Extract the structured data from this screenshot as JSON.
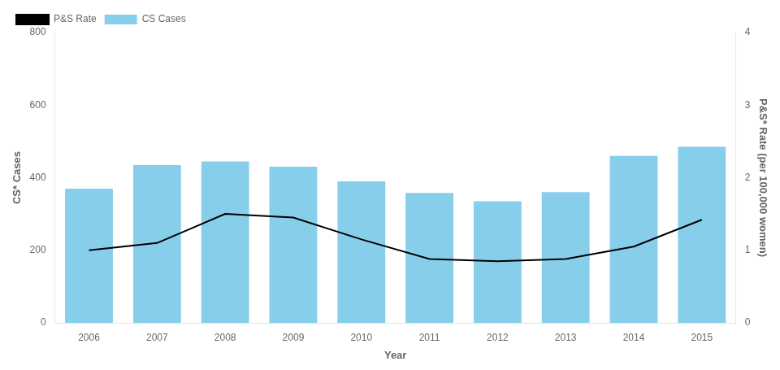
{
  "chart_data": {
    "type": "bar",
    "xlabel": "Year",
    "ylabel": "CS* Cases",
    "y2label": "P&S* Rate (per 100,000 women)",
    "categories": [
      "2006",
      "2007",
      "2008",
      "2009",
      "2010",
      "2011",
      "2012",
      "2013",
      "2014",
      "2015"
    ],
    "series": [
      {
        "name": "CS Cases",
        "type": "bar",
        "color": "#87CEEB",
        "values": [
          370,
          435,
          445,
          430,
          390,
          358,
          335,
          360,
          460,
          485
        ]
      },
      {
        "name": "P&S Rate",
        "type": "line",
        "color": "#000000",
        "axis": "y2",
        "values": [
          1.0,
          1.1,
          1.5,
          1.45,
          1.15,
          0.88,
          0.85,
          0.88,
          1.05,
          1.42
        ]
      }
    ],
    "ylim": [
      0,
      800
    ],
    "yticks": [
      0,
      200,
      400,
      600,
      800
    ],
    "y2lim": [
      0,
      4
    ],
    "y2ticks": [
      0,
      1,
      2,
      3,
      4
    ],
    "grid": false,
    "legend": "upper left"
  }
}
